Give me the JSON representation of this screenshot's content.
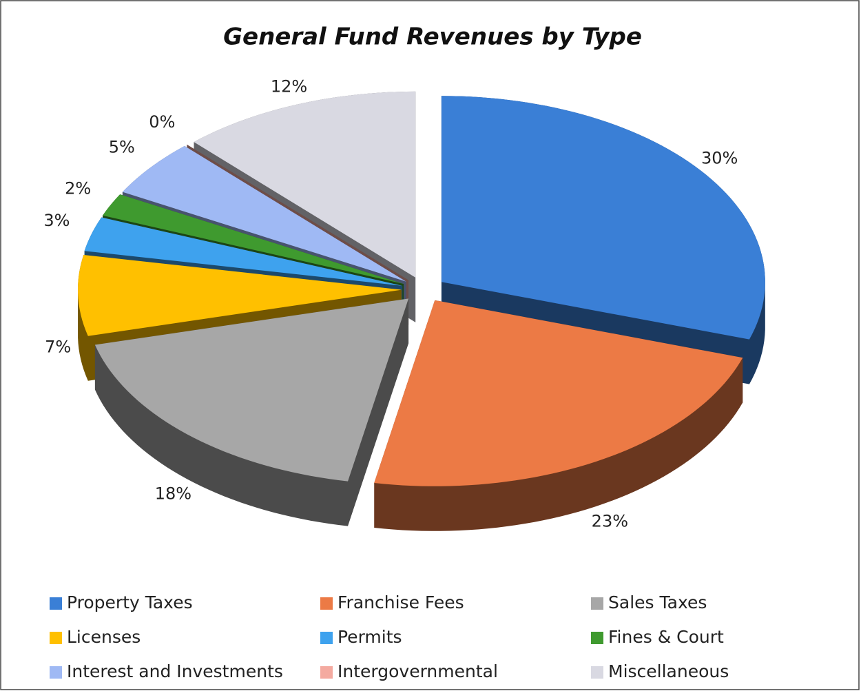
{
  "chart_data": {
    "type": "pie",
    "title": "General Fund Revenues by Type",
    "categories": [
      "Property Taxes",
      "Franchise Fees",
      "Sales Taxes",
      "Licenses",
      "Permits",
      "Fines & Court",
      "Interest and Investments",
      "Intergovernmental",
      "Miscellaneous"
    ],
    "values": [
      30,
      23,
      18,
      7,
      3,
      2,
      5,
      0,
      12
    ],
    "value_labels": [
      "30%",
      "23%",
      "18%",
      "7%",
      "3%",
      "2%",
      "5%",
      "0%",
      "12%"
    ],
    "colors": [
      "#3a7fd6",
      "#ec7a45",
      "#a7a7a7",
      "#ffc000",
      "#3ea2ee",
      "#3f9a2f",
      "#9fb9f4",
      "#f4aaa0",
      "#d9d9e2"
    ],
    "legend": "bottom"
  }
}
